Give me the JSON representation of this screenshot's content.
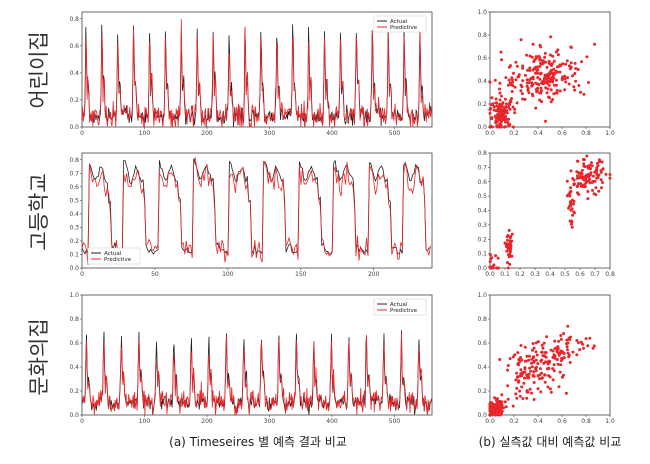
{
  "colors": {
    "actual": "#222222",
    "predictive": "#e8262b",
    "scatter": "#e8262b"
  },
  "captions": {
    "left": "(a) Timeseires 별 예측 결과 비교",
    "right": "(b) 실측값 대비 예측값 비교"
  },
  "chart_data": [
    {
      "type": "line",
      "row_label": "어린이집",
      "legend_position": "top-right",
      "series": [
        {
          "name": "Actual"
        },
        {
          "name": "Predictive"
        }
      ],
      "xlim": [
        0,
        560
      ],
      "ylim": [
        0,
        0.85
      ],
      "xticks": [
        0,
        100,
        200,
        300,
        400,
        500
      ],
      "yticks": [
        0.0,
        0.2,
        0.4,
        0.6,
        0.8
      ],
      "ytick_labels": [
        "0.0",
        "0.2",
        "0.4",
        "0.6",
        "0.8"
      ],
      "pattern": {
        "n": 550,
        "cycles": 22,
        "peak": 0.7,
        "base": 0.06
      }
    },
    {
      "type": "scatter",
      "xlim": [
        0,
        1
      ],
      "ylim": [
        0,
        1
      ],
      "xticks": [
        0,
        0.2,
        0.4,
        0.6,
        0.8,
        1.0
      ],
      "yticks": [
        0,
        0.2,
        0.4,
        0.6,
        0.8,
        1.0
      ],
      "xtick_labels": [
        "0.0",
        "0.2",
        "0.4",
        "0.6",
        "0.8",
        "1.0"
      ],
      "ytick_labels": [
        "0.0",
        "0.2",
        "0.4",
        "0.6",
        "0.8",
        "1.0"
      ],
      "clusters": [
        {
          "cx": 0.1,
          "cy": 0.12,
          "sx": 0.05,
          "sy": 0.08,
          "n": 120
        },
        {
          "cx": 0.45,
          "cy": 0.45,
          "sx": 0.17,
          "sy": 0.14,
          "n": 220
        }
      ]
    },
    {
      "type": "line",
      "row_label": "고등학교",
      "legend_position": "lower-left",
      "series": [
        {
          "name": "Actual"
        },
        {
          "name": "Predictive"
        }
      ],
      "xlim": [
        0,
        240
      ],
      "ylim": [
        0,
        0.85
      ],
      "xticks": [
        0,
        50,
        100,
        150,
        200
      ],
      "yticks": [
        0.0,
        0.1,
        0.2,
        0.3,
        0.4,
        0.5,
        0.6,
        0.7,
        0.8
      ],
      "ytick_labels": [
        "0.0",
        "0.1",
        "0.2",
        "0.3",
        "0.4",
        "0.5",
        "0.6",
        "0.7",
        "0.8"
      ],
      "pattern": {
        "n": 235,
        "cycles": 10,
        "peak": 0.7,
        "base": 0.12
      }
    },
    {
      "type": "scatter",
      "xlim": [
        0,
        0.8
      ],
      "ylim": [
        0,
        0.8
      ],
      "xticks": [
        0,
        0.1,
        0.2,
        0.3,
        0.4,
        0.5,
        0.6,
        0.7,
        0.8
      ],
      "yticks": [
        0,
        0.1,
        0.2,
        0.3,
        0.4,
        0.5,
        0.6,
        0.7,
        0.8
      ],
      "xtick_labels": [
        "0.0",
        "0.1",
        "0.2",
        "0.3",
        "0.4",
        "0.5",
        "0.6",
        "0.7",
        "0.8"
      ],
      "ytick_labels": [
        "0.0",
        "0.1",
        "0.2",
        "0.3",
        "0.4",
        "0.5",
        "0.6",
        "0.7",
        "0.8"
      ],
      "clusters": [
        {
          "cx": 0.13,
          "cy": 0.13,
          "sx": 0.01,
          "sy": 0.05,
          "n": 40
        },
        {
          "cx": 0.02,
          "cy": 0.03,
          "sx": 0.02,
          "sy": 0.05,
          "n": 20
        },
        {
          "cx": 0.65,
          "cy": 0.63,
          "sx": 0.06,
          "sy": 0.06,
          "n": 110
        },
        {
          "cx": 0.54,
          "cy": 0.45,
          "sx": 0.01,
          "sy": 0.08,
          "n": 25
        }
      ]
    },
    {
      "type": "line",
      "row_label": "문화의집",
      "legend_position": "top-right",
      "series": [
        {
          "name": "Actual"
        },
        {
          "name": "Predictive"
        }
      ],
      "xlim": [
        0,
        560
      ],
      "ylim": [
        0,
        1.0
      ],
      "xticks": [
        0,
        100,
        200,
        300,
        400,
        500
      ],
      "yticks": [
        0.0,
        0.2,
        0.4,
        0.6,
        0.8,
        1.0
      ],
      "ytick_labels": [
        "0.0",
        "0.2",
        "0.4",
        "0.6",
        "0.8",
        "1.0"
      ],
      "pattern": {
        "n": 540,
        "cycles": 20,
        "peak": 0.65,
        "base": 0.08
      }
    },
    {
      "type": "scatter",
      "xlim": [
        0,
        1
      ],
      "ylim": [
        0,
        1
      ],
      "xticks": [
        0,
        0.2,
        0.4,
        0.6,
        0.8,
        1.0
      ],
      "yticks": [
        0,
        0.2,
        0.4,
        0.6,
        0.8,
        1.0
      ],
      "xtick_labels": [
        "0.0",
        "0.2",
        "0.4",
        "0.6",
        "0.8",
        "1.0"
      ],
      "ytick_labels": [
        "0.0",
        "0.2",
        "0.4",
        "0.6",
        "0.8",
        "1.0"
      ],
      "clusters": [
        {
          "cx": 0.05,
          "cy": 0.05,
          "sx": 0.04,
          "sy": 0.04,
          "n": 150
        },
        {
          "cx": 0.35,
          "cy": 0.35,
          "sx": 0.12,
          "sy": 0.12,
          "n": 120
        },
        {
          "cx": 0.6,
          "cy": 0.55,
          "sx": 0.12,
          "sy": 0.08,
          "n": 80
        }
      ]
    }
  ]
}
